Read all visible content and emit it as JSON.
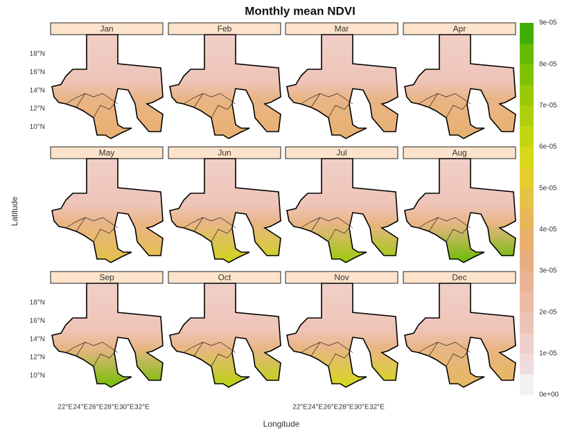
{
  "chart_data": {
    "type": "facet-map",
    "title": "Monthly mean NDVI",
    "xlabel": "Longitude",
    "ylabel": "Latitude",
    "facets": [
      "Jan",
      "Feb",
      "Mar",
      "Apr",
      "May",
      "Jun",
      "Jul",
      "Aug",
      "Sep",
      "Oct",
      "Nov",
      "Dec"
    ],
    "xlim": [
      20.1,
      34.7
    ],
    "ylim": [
      8,
      20.1
    ],
    "xticks": [
      {
        "value": 22,
        "label": "22°E"
      },
      {
        "value": 24,
        "label": "24°E"
      },
      {
        "value": 26,
        "label": "26°E"
      },
      {
        "value": 28,
        "label": "28°E"
      },
      {
        "value": 30,
        "label": "30°E"
      },
      {
        "value": 32,
        "label": "32°E"
      }
    ],
    "yticks": [
      {
        "value": 10,
        "label": "10°N"
      },
      {
        "value": 12,
        "label": "12°N"
      },
      {
        "value": 14,
        "label": "14°N"
      },
      {
        "value": 16,
        "label": "16°N"
      },
      {
        "value": 18,
        "label": "18°N"
      }
    ],
    "colorbar": {
      "lim": [
        0,
        9e-05
      ],
      "ticks": [
        {
          "value": 0,
          "label": "0e+00"
        },
        {
          "value": 1e-05,
          "label": "1e-05"
        },
        {
          "value": 2e-05,
          "label": "2e-05"
        },
        {
          "value": 3e-05,
          "label": "3e-05"
        },
        {
          "value": 4e-05,
          "label": "4e-05"
        },
        {
          "value": 5e-05,
          "label": "5e-05"
        },
        {
          "value": 6e-05,
          "label": "6e-05"
        },
        {
          "value": 7e-05,
          "label": "7e-05"
        },
        {
          "value": 8e-05,
          "label": "8e-05"
        },
        {
          "value": 9e-05,
          "label": "9e-05"
        }
      ],
      "colors": [
        "#f2f2f2",
        "#f0dcdc",
        "#f0d0ca",
        "#efc4b8",
        "#edbba6",
        "#ebb393",
        "#e9ae80",
        "#e8b06c",
        "#e7b75a",
        "#e6c246",
        "#e3cd2f",
        "#d8d81a",
        "#c3d610",
        "#aed00a",
        "#98ca06",
        "#80c303",
        "#64bb01",
        "#3fae00"
      ]
    }
  }
}
